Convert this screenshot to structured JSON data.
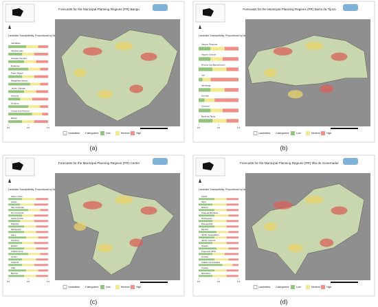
{
  "subtitle": "Landslide Susceptibility, Proportional by Neighborhood",
  "legend": {
    "landslides": "Landslides",
    "categories": "Categories",
    "low": "Low",
    "medium": "Medium",
    "high": "High"
  },
  "colors": {
    "low": "#93c47d",
    "medium": "#f3ea8f",
    "high": "#ef8f8a"
  },
  "bar_ticks": [
    {
      "value": 0,
      "label": "0.0"
    },
    {
      "value": 0.5,
      "label": "0.5"
    },
    {
      "value": 1,
      "label": "1.0"
    }
  ],
  "panels": [
    {
      "title": "Forecasts for the Municipal Planning Regions (PR) Bangu",
      "caption": "(a)",
      "rows": [
        {
          "name": "Vila Militar",
          "values": [
            0.45,
            0.3,
            0.25
          ]
        },
        {
          "name": "Vila Kennedy",
          "values": [
            0.35,
            0.3,
            0.35
          ]
        },
        {
          "name": "Senador Camará",
          "values": [
            0.4,
            0.3,
            0.3
          ]
        },
        {
          "name": "Realengo",
          "values": [
            0.5,
            0.3,
            0.2
          ]
        },
        {
          "name": "Padre Miguel",
          "values": [
            0.35,
            0.3,
            0.35
          ]
        },
        {
          "name": "Magalhães Bastos",
          "values": [
            0.55,
            0.25,
            0.2
          ]
        },
        {
          "name": "Jardim Sulacap",
          "values": [
            0.4,
            0.3,
            0.3
          ]
        },
        {
          "name": "Gericinó",
          "values": [
            0.3,
            0.3,
            0.4
          ]
        },
        {
          "name": "Deodoro",
          "values": [
            0.5,
            0.3,
            0.2
          ]
        },
        {
          "name": "Campo dos Afonsos",
          "values": [
            0.6,
            0.25,
            0.15
          ]
        },
        {
          "name": "Bangu",
          "values": [
            0.35,
            0.3,
            0.35
          ]
        }
      ]
    },
    {
      "title": "Forecasts for the Municipal Planning Regions (PR) Barra da Tijuca",
      "caption": "(b)",
      "rows": [
        {
          "name": "Vargem Pequena",
          "values": [
            0.3,
            0.35,
            0.35
          ]
        },
        {
          "name": "Vargem Grande",
          "values": [
            0.3,
            0.3,
            0.4
          ]
        },
        {
          "name": "Recreio dos Bandeirantes",
          "values": [
            0.35,
            0.35,
            0.3
          ]
        },
        {
          "name": "Joá",
          "values": [
            0.1,
            0.2,
            0.7
          ]
        },
        {
          "name": "Itanhangá",
          "values": [
            0.3,
            0.35,
            0.35
          ]
        },
        {
          "name": "Grumari",
          "values": [
            0.15,
            0.25,
            0.6
          ]
        },
        {
          "name": "Camorim",
          "values": [
            0.3,
            0.3,
            0.4
          ]
        },
        {
          "name": "Barra da Tijuca",
          "values": [
            0.35,
            0.35,
            0.3
          ]
        }
      ]
    },
    {
      "title": "Forecasts for the Municipal Planning Regions (PR) Centro",
      "caption": "(c)",
      "rows": [
        {
          "name": "Santo Cristo",
          "values": [
            0.35,
            0.35,
            0.3
          ]
        },
        {
          "name": "Saúde",
          "values": [
            0.3,
            0.35,
            0.35
          ]
        },
        {
          "name": "São Cristóvão",
          "values": [
            0.5,
            0.3,
            0.2
          ]
        },
        {
          "name": "Rio Comprido",
          "values": [
            0.35,
            0.3,
            0.35
          ]
        },
        {
          "name": "Santa Teresa",
          "values": [
            0.3,
            0.35,
            0.35
          ]
        },
        {
          "name": "Paquetá",
          "values": [
            0.4,
            0.3,
            0.3
          ]
        },
        {
          "name": "Mangueira",
          "values": [
            0.4,
            0.3,
            0.3
          ]
        },
        {
          "name": "Lapa",
          "values": [
            0.45,
            0.3,
            0.25
          ]
        },
        {
          "name": "Gamboa",
          "values": [
            0.35,
            0.3,
            0.35
          ]
        },
        {
          "name": "Estácio",
          "values": [
            0.4,
            0.3,
            0.3
          ]
        },
        {
          "name": "Cidade Nova",
          "values": [
            0.5,
            0.3,
            0.2
          ]
        },
        {
          "name": "Centro",
          "values": [
            0.35,
            0.35,
            0.3
          ]
        },
        {
          "name": "Catumbi",
          "values": [
            0.35,
            0.3,
            0.35
          ]
        },
        {
          "name": "Caju",
          "values": [
            0.45,
            0.3,
            0.25
          ]
        },
        {
          "name": "Benfica",
          "values": [
            0.4,
            0.3,
            0.3
          ]
        }
      ]
    },
    {
      "title": "Forecasts for the Municipal Planning Regions (PR) Ilha do Governador",
      "caption": "(d)",
      "rows": [
        {
          "name": "Zumbi",
          "values": [
            0.4,
            0.3,
            0.3
          ]
        },
        {
          "name": "Tauá",
          "values": [
            0.35,
            0.35,
            0.3
          ]
        },
        {
          "name": "Ribeira",
          "values": [
            0.4,
            0.3,
            0.3
          ]
        },
        {
          "name": "Praia da Bandeira",
          "values": [
            0.4,
            0.35,
            0.25
          ]
        },
        {
          "name": "Portuguesa",
          "values": [
            0.35,
            0.35,
            0.3
          ]
        },
        {
          "name": "Pitangueiras",
          "values": [
            0.4,
            0.3,
            0.3
          ]
        },
        {
          "name": "Moneró",
          "values": [
            0.45,
            0.3,
            0.25
          ]
        },
        {
          "name": "Jardim Guanabara",
          "values": [
            0.4,
            0.3,
            0.3
          ]
        },
        {
          "name": "Jardim Carioca",
          "values": [
            0.35,
            0.35,
            0.3
          ]
        },
        {
          "name": "Galeão",
          "values": [
            0.45,
            0.3,
            0.25
          ]
        },
        {
          "name": "Freguesia (Ilha)",
          "values": [
            0.35,
            0.3,
            0.35
          ]
        },
        {
          "name": "Cocotá",
          "values": [
            0.4,
            0.35,
            0.25
          ]
        },
        {
          "name": "Cidade Universitária",
          "values": [
            0.6,
            0.25,
            0.15
          ]
        },
        {
          "name": "Cacuia",
          "values": [
            0.4,
            0.3,
            0.3
          ]
        },
        {
          "name": "Bancários",
          "values": [
            0.35,
            0.35,
            0.3
          ]
        }
      ]
    }
  ]
}
